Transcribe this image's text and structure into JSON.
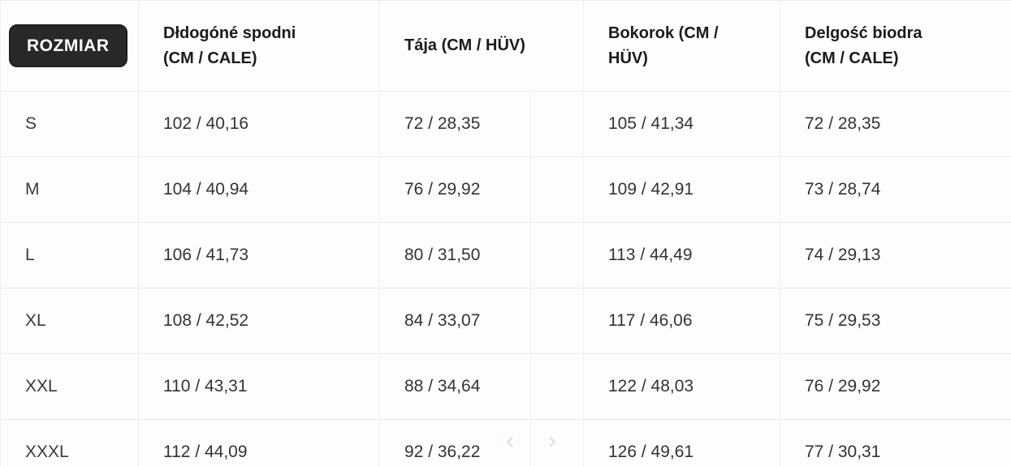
{
  "colors": {
    "page_background": "#fcfcfc",
    "badge_background": "#282828",
    "badge_text": "#ffffff",
    "grid_line": "#ececec",
    "header_text": "#1b1b1b",
    "cell_text": "#333333",
    "chevron": "#b3d2f2"
  },
  "table": {
    "header": {
      "size_badge": "ROZMIAR",
      "columns": [
        {
          "label": "Dłdogóné spodni (CM / CALE)",
          "lines": [
            "Dłdogóné spodni",
            "(CM / CALE)"
          ]
        },
        {
          "label": "Tája (CM / HÜV)",
          "lines": [
            "Tája (CM / HÜV)"
          ]
        },
        {
          "label": "Bokorok (CM / HÜV)",
          "lines": [
            "Bokorok (CM /",
            "HÜV)"
          ]
        },
        {
          "label": "Delgość biodra (CM / CALE)",
          "lines": [
            "Delgość biodra",
            "(CM / CALE)"
          ]
        }
      ]
    },
    "rows": [
      {
        "size": "S",
        "leg_length": "102 / 40,16",
        "waist": "72 / 28,35",
        "hips": "105 / 41,34",
        "hip_length": "72 / 28,35"
      },
      {
        "size": "M",
        "leg_length": "104 / 40,94",
        "waist": "76 / 29,92",
        "hips": "109 / 42,91",
        "hip_length": "73 / 28,74"
      },
      {
        "size": "L",
        "leg_length": "106 / 41,73",
        "waist": "80 / 31,50",
        "hips": "113 / 44,49",
        "hip_length": "74 / 29,13"
      },
      {
        "size": "XL",
        "leg_length": "108 / 42,52",
        "waist": "84 / 33,07",
        "hips": "117 / 46,06",
        "hip_length": "75 / 29,53"
      },
      {
        "size": "XXL",
        "leg_length": "110 / 43,31",
        "waist": "88 / 34,64",
        "hips": "122 / 48,03",
        "hip_length": "76 / 29,92"
      },
      {
        "size": "XXXL",
        "leg_length": "112 / 44,09",
        "waist": "92 / 36,22",
        "hips": "126 / 49,61",
        "hip_length": "77 / 30,31"
      }
    ]
  },
  "pager": {
    "prev_icon": "‹",
    "next_icon": "›"
  }
}
